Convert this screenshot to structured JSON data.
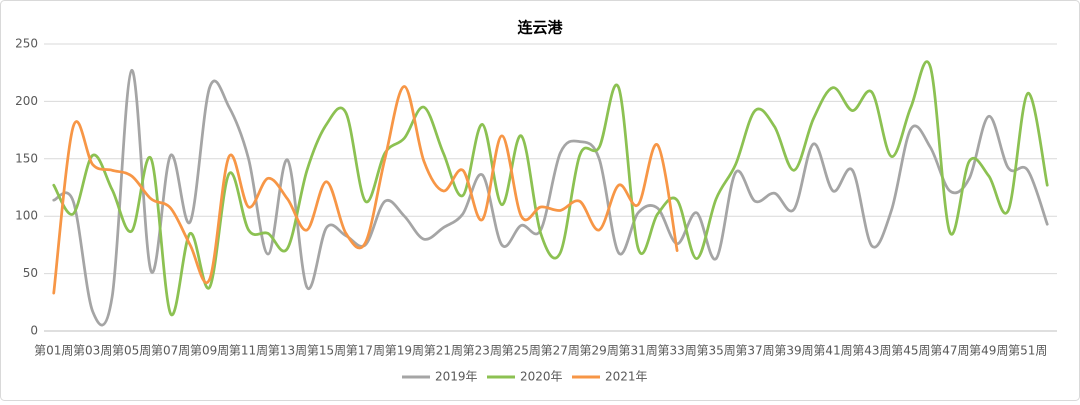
{
  "chart_data": {
    "type": "line",
    "title": "连云港",
    "categories": [
      "第01周",
      null,
      "第03周",
      null,
      "第05周",
      null,
      "第07周",
      null,
      "第09周",
      null,
      "第11周",
      null,
      "第13周",
      null,
      "第15周",
      null,
      "第17周",
      null,
      "第19周",
      null,
      "第21周",
      null,
      "第23周",
      null,
      "第25周",
      null,
      "第27周",
      null,
      "第29周",
      null,
      "第31周",
      null,
      "第33周",
      null,
      "第35周",
      null,
      "第37周",
      null,
      "第39周",
      null,
      "第41周",
      null,
      "第43周",
      null,
      "第45周",
      null,
      "第47周",
      null,
      "第49周",
      null,
      "第51周",
      null
    ],
    "series": [
      {
        "name": "2019年",
        "color": "#a5a5a5",
        "values": [
          114,
          113,
          17,
          30,
          227,
          52,
          153,
          95,
          212,
          195,
          150,
          67,
          149,
          38,
          90,
          83,
          75,
          113,
          100,
          80,
          90,
          102,
          136,
          75,
          92,
          88,
          155,
          165,
          150,
          68,
          103,
          107,
          76,
          103,
          63,
          138,
          113,
          120,
          106,
          163,
          122,
          140,
          74,
          105,
          176,
          160,
          122,
          133,
          187,
          142,
          140,
          93
        ]
      },
      {
        "name": "2020年",
        "color": "#8cc152",
        "values": [
          127,
          102,
          153,
          123,
          87,
          150,
          15,
          85,
          38,
          137,
          88,
          85,
          72,
          140,
          180,
          190,
          113,
          155,
          168,
          195,
          155,
          118,
          180,
          110,
          170,
          85,
          68,
          153,
          160,
          212,
          72,
          102,
          114,
          63,
          115,
          145,
          192,
          178,
          140,
          185,
          212,
          192,
          208,
          152,
          195,
          230,
          86,
          148,
          135,
          105,
          207,
          127
        ]
      },
      {
        "name": "2021年",
        "color": "#f79646",
        "values": [
          33,
          178,
          145,
          140,
          135,
          115,
          107,
          75,
          45,
          152,
          108,
          133,
          115,
          88,
          130,
          85,
          77,
          150,
          213,
          148,
          122,
          140,
          97,
          170,
          100,
          108,
          105,
          113,
          88,
          127,
          110,
          162,
          70,
          null,
          null,
          null,
          null,
          null,
          null,
          null,
          null,
          null,
          null,
          null,
          null,
          null,
          null,
          null,
          null,
          null,
          null,
          null
        ]
      }
    ],
    "ylim": [
      0,
      250
    ],
    "yticks": [
      0,
      50,
      100,
      150,
      200,
      250
    ],
    "grid": true,
    "legend": "bottom"
  }
}
